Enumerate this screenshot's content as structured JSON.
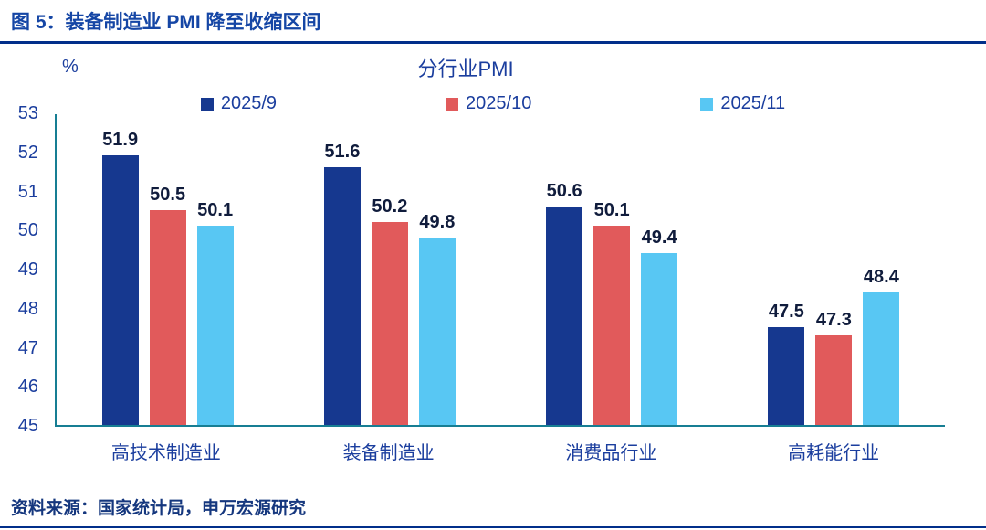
{
  "header": {
    "title": "图 5：装备制造业 PMI 降至收缩区间"
  },
  "footer": {
    "source": "资料来源：国家统计局，申万宏源研究"
  },
  "colors": {
    "series_navy": "#16388F",
    "series_red": "#E15A5B",
    "series_lightblue": "#58C7F3",
    "text_blue": "#1B3E9E",
    "rule_navy": "#012F8A",
    "axis_teal": "#177E93"
  },
  "chart_data": {
    "type": "bar",
    "title": "分行业PMI",
    "unit": "%",
    "categories": [
      "高技术制造业",
      "装备制造业",
      "消费品行业",
      "高耗能行业"
    ],
    "series": [
      {
        "name": "2025/9",
        "color": "#16388F",
        "values": [
          51.9,
          51.6,
          50.6,
          47.5
        ]
      },
      {
        "name": "2025/10",
        "color": "#E15A5B",
        "values": [
          50.5,
          50.2,
          50.1,
          47.3
        ]
      },
      {
        "name": "2025/11",
        "color": "#58C7F3",
        "values": [
          50.1,
          49.8,
          49.4,
          48.4
        ]
      }
    ],
    "ylim": [
      45,
      53
    ],
    "ytick_step": 1,
    "grid": false,
    "legend_position": "top",
    "xlabel": "",
    "ylabel": "%"
  }
}
